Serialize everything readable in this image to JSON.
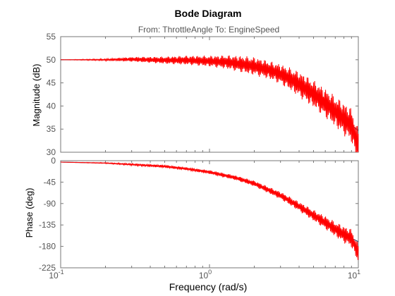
{
  "chart_data": {
    "type": "line",
    "title": "Bode Diagram",
    "subtitle": "From: ThrottleAngle  To: EngineSpeed",
    "xlabel": "Frequency  (rad/s)",
    "x_scale": "log",
    "xlim": [
      0.1,
      10
    ],
    "x_ticks": [
      {
        "base": "10",
        "exp": "-1"
      },
      {
        "base": "10",
        "exp": "0"
      },
      {
        "base": "10",
        "exp": "1"
      }
    ],
    "grid": false,
    "colors": {
      "model": "#3b4a6b",
      "measured": "#ff0000"
    },
    "panels": [
      {
        "name": "magnitude",
        "ylabel": "Magnitude (dB)",
        "ylim": [
          30,
          55
        ],
        "yticks": [
          30,
          35,
          40,
          45,
          50,
          55
        ],
        "series": [
          {
            "id": "model",
            "x": [
              0.1,
              0.2,
              0.3,
              0.5,
              0.7,
              1.0,
              1.3,
              1.6,
              2.0,
              2.5,
              3.0,
              3.5,
              4.0,
              5.0,
              6.0,
              7.0,
              8.0,
              9.0,
              10.0
            ],
            "y": [
              50.0,
              50.0,
              50.0,
              49.9,
              49.9,
              49.7,
              49.5,
              49.1,
              48.6,
              47.8,
              46.9,
              45.8,
              44.7,
              42.6,
              40.6,
              38.8,
              37.2,
              35.8,
              34.7
            ]
          },
          {
            "id": "measured",
            "x": [
              0.1,
              0.2,
              0.3,
              0.5,
              0.7,
              1.0,
              1.3,
              1.6,
              2.0,
              2.5,
              3.0,
              3.5,
              4.0,
              5.0,
              6.0,
              7.0,
              8.0,
              9.0,
              10.0
            ],
            "y": [
              50.0,
              50.0,
              50.1,
              49.9,
              49.9,
              49.7,
              49.5,
              49.1,
              48.6,
              47.8,
              46.9,
              45.8,
              44.7,
              42.6,
              40.6,
              38.8,
              37.2,
              35.8,
              31.0
            ],
            "ripple": [
              0.0,
              0.2,
              0.5,
              0.8,
              1.0,
              1.2,
              1.5,
              1.8,
              2.0,
              2.0,
              2.2,
              2.5,
              2.8,
              3.0,
              3.2,
              3.4,
              3.6,
              3.8,
              4.0
            ]
          }
        ]
      },
      {
        "name": "phase",
        "ylabel": "Phase (deg)",
        "ylim": [
          -225,
          0
        ],
        "yticks": [
          -225,
          -180,
          -135,
          -90,
          -45,
          0
        ],
        "series": [
          {
            "id": "model",
            "x": [
              0.1,
              0.2,
              0.3,
              0.5,
              0.7,
              1.0,
              1.5,
              2.0,
              3.0,
              4.0,
              5.0,
              6.0,
              7.0,
              8.0,
              9.0,
              10.0
            ],
            "y": [
              -3,
              -5,
              -8,
              -12,
              -17,
              -24,
              -36,
              -48,
              -73,
              -96,
              -115,
              -130,
              -144,
              -155,
              -163,
              -170
            ]
          },
          {
            "id": "measured",
            "x": [
              0.1,
              0.2,
              0.3,
              0.5,
              0.7,
              1.0,
              1.5,
              2.0,
              3.0,
              4.0,
              5.0,
              6.0,
              7.0,
              8.0,
              9.0,
              10.0
            ],
            "y": [
              -3,
              -5,
              -8,
              -12,
              -17,
              -24,
              -36,
              -48,
              -73,
              -96,
              -115,
              -130,
              -144,
              -155,
              -163,
              -195
            ],
            "ripple": [
              0,
              1,
              2,
              3,
              3,
              4,
              5,
              6,
              8,
              10,
              12,
              14,
              16,
              18,
              20,
              20
            ]
          }
        ]
      }
    ]
  }
}
